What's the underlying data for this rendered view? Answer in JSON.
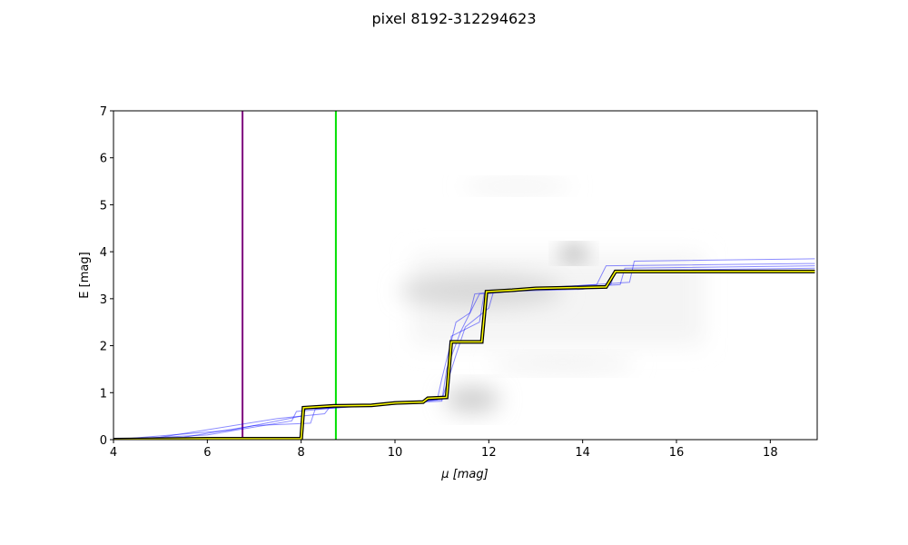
{
  "chart_data": {
    "type": "line",
    "title": "pixel 8192-312294623",
    "xlabel": "μ [mag]",
    "ylabel": "E [mag]",
    "xlim": [
      4,
      19
    ],
    "ylim": [
      0,
      7
    ],
    "xticks": [
      4,
      6,
      8,
      10,
      12,
      14,
      16,
      18
    ],
    "yticks": [
      0,
      1,
      2,
      3,
      4,
      5,
      6,
      7
    ],
    "vlines": [
      {
        "x": 6.75,
        "color": "#800080"
      },
      {
        "x": 8.74,
        "color": "#00e000"
      }
    ],
    "series": [
      {
        "color": "#0000ff",
        "x": [
          4,
          5.5,
          7,
          8.2,
          8.3,
          10,
          10.9,
          11.0,
          11.3,
          11.6,
          11.7,
          12.5,
          14.3,
          14.5,
          18.95
        ],
        "values": [
          0,
          0.05,
          0.3,
          0.35,
          0.65,
          0.75,
          0.85,
          1.3,
          2.5,
          2.7,
          3.1,
          3.2,
          3.3,
          3.7,
          3.75
        ]
      },
      {
        "color": "#0000ff",
        "x": [
          4,
          6,
          7.8,
          7.9,
          9,
          10.5,
          11.1,
          11.2,
          11.8,
          11.9,
          13,
          14.8,
          14.9,
          18.95
        ],
        "values": [
          0,
          0.1,
          0.4,
          0.6,
          0.7,
          0.8,
          0.9,
          2.2,
          2.5,
          3.1,
          3.2,
          3.3,
          3.65,
          3.7
        ]
      },
      {
        "color": "#0000ff",
        "x": [
          4,
          6.5,
          8.0,
          8.1,
          9.5,
          11.0,
          11.3,
          11.5,
          12.0,
          12.1,
          14.0,
          14.6,
          14.7,
          18.95
        ],
        "values": [
          0,
          0.2,
          0.5,
          0.65,
          0.72,
          0.85,
          1.8,
          2.4,
          2.8,
          3.15,
          3.2,
          3.3,
          3.6,
          3.65
        ]
      },
      {
        "color": "#0000ff",
        "x": [
          4,
          5,
          7.5,
          8.5,
          8.6,
          10.2,
          11.0,
          11.1,
          11.4,
          11.7,
          11.8,
          13.5,
          15.0,
          15.1,
          18.95
        ],
        "values": [
          0,
          0.05,
          0.45,
          0.55,
          0.68,
          0.78,
          0.82,
          1.5,
          2.3,
          2.9,
          3.1,
          3.25,
          3.35,
          3.8,
          3.85
        ]
      },
      {
        "color": "#ffff00",
        "edgecolor": "#000000",
        "x": [
          4,
          6,
          8.0,
          8.05,
          8.7,
          9.5,
          10.0,
          10.6,
          10.7,
          11.1,
          11.2,
          11.85,
          11.95,
          12.5,
          13.0,
          14.5,
          14.7,
          18.95
        ],
        "values": [
          0,
          0.02,
          0.02,
          0.68,
          0.72,
          0.73,
          0.78,
          0.8,
          0.88,
          0.9,
          2.08,
          2.08,
          3.15,
          3.18,
          3.22,
          3.25,
          3.58,
          3.58
        ]
      }
    ]
  }
}
